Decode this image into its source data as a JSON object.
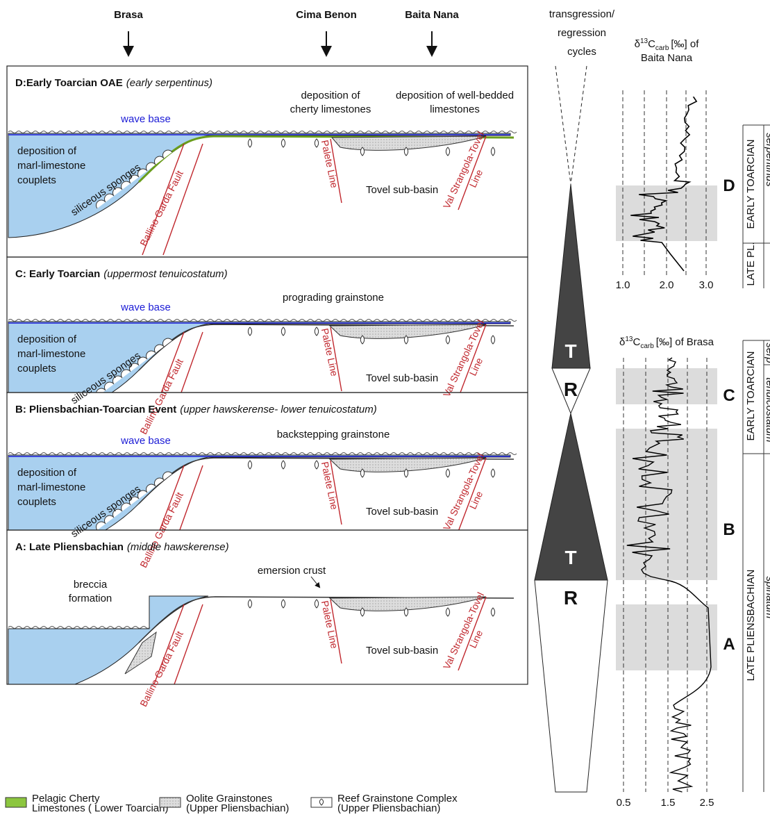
{
  "locations": [
    "Brasa",
    "Cima Benon",
    "Baita Nana"
  ],
  "cycles_title": [
    "transgression/",
    "regression",
    "cycles"
  ],
  "panels": [
    {
      "title": "D:Early Toarcian OAE",
      "stage": "(early serpentinus)",
      "wave_base": "wave base",
      "basin_deposit": [
        "deposition of",
        "marl-limestone",
        "couplets"
      ],
      "sponges": "siliceous sponges",
      "fault": "Ballino Garda Fault",
      "palete": "Palete Line",
      "subbasin": "Tovel sub-basin",
      "val_line": [
        "Val Strangola-Tovel",
        "Line"
      ],
      "notes": [
        [
          "deposition of",
          "cherty limestones"
        ],
        [
          "deposition of well-bedded",
          "limestones"
        ]
      ]
    },
    {
      "title": "C: Early Toarcian",
      "stage": "(uppermost tenuicostatum)",
      "wave_base": "wave base",
      "basin_deposit": [
        "deposition of",
        "marl-limestone",
        "couplets"
      ],
      "sponges": "siliceous sponges",
      "fault": "Ballino Garda Fault",
      "palete": "Palete Line",
      "subbasin": "Tovel sub-basin",
      "val_line": [
        "Val Strangola-Tovel",
        "Line"
      ],
      "notes": [
        [
          "prograding grainstone"
        ]
      ]
    },
    {
      "title": "B: Pliensbachian-Toarcian Event",
      "stage": "(upper hawskerense- lower tenuicostatum)",
      "wave_base": "wave base",
      "basin_deposit": [
        "deposition of",
        "marl-limestone",
        "couplets"
      ],
      "sponges": "siliceous sponges",
      "fault": "Ballino Garda Fault",
      "palete": "Palete Line",
      "subbasin": "Tovel sub-basin",
      "val_line": [
        "Val Strangola-Tovel",
        "Line"
      ],
      "notes": [
        [
          "backstepping grainstone"
        ]
      ]
    },
    {
      "title": "A: Late Pliensbachian",
      "stage": "(middle hawskerense)",
      "fault": "Ballino Garda Fault",
      "palete": "Palete Line",
      "subbasin": "Tovel sub-basin",
      "val_line": [
        "Val Strangola-Tovel",
        "Line"
      ],
      "notes": [
        [
          "emersion crust"
        ],
        [
          "breccia",
          "formation"
        ]
      ]
    }
  ],
  "cycles": [
    "T",
    "R",
    "T",
    "R"
  ],
  "isotopes": [
    {
      "title": {
        "delta": "δ",
        "sup": "13",
        "main": "C",
        "sub": "carb",
        "unit": "[‰] of",
        "site": "Baita Nana"
      },
      "ticks": [
        "1.0",
        "2.0",
        "3.0"
      ],
      "events": [
        "D"
      ],
      "stages": [
        "EARLY TOARCIAN",
        "LATE PL."
      ],
      "zones": [
        "serpentinus"
      ]
    },
    {
      "title": {
        "delta": "δ",
        "sup": "13",
        "main": "C",
        "sub": "carb",
        "unit": "[‰] of",
        "site": "Brasa"
      },
      "ticks": [
        "0.5",
        "1.5",
        "2.5"
      ],
      "events": [
        "C",
        "B",
        "A"
      ],
      "stages": [
        "EARLY TOARCIAN",
        "LATE PLIENSBACHIAN"
      ],
      "zones": [
        "serp",
        "tenuicostatum",
        "spinatum"
      ]
    }
  ],
  "legend": [
    {
      "label": [
        "Pelagic Cherty",
        "Limestones ( Lower Toarcian)"
      ]
    },
    {
      "label": [
        "Oolite Grainstones",
        "(Upper Pliensbachian)"
      ]
    },
    {
      "label": [
        "Reef Grainstone Complex",
        "(Upper Pliensbachian)"
      ]
    }
  ]
}
